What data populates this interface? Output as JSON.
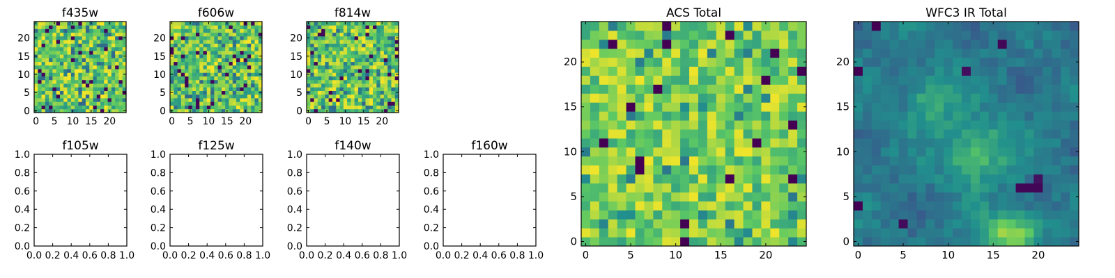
{
  "chart_data": [
    {
      "type": "heatmap",
      "title": "f435w",
      "grid_size": 25,
      "xticks": [
        "0",
        "5",
        "10",
        "15",
        "20"
      ],
      "yticks": [
        "0",
        "5",
        "10",
        "15",
        "20"
      ]
    },
    {
      "type": "heatmap",
      "title": "f606w",
      "grid_size": 25,
      "xticks": [
        "0",
        "5",
        "10",
        "15",
        "20"
      ],
      "yticks": [
        "0",
        "5",
        "10",
        "15",
        "20"
      ]
    },
    {
      "type": "heatmap",
      "title": "f814w",
      "grid_size": 25,
      "xticks": [
        "0",
        "5",
        "10",
        "15",
        "20"
      ],
      "yticks": [
        "0",
        "5",
        "10",
        "15",
        "20"
      ]
    },
    {
      "type": "empty",
      "title": "f105w",
      "xticks": [
        "0.0",
        "0.2",
        "0.4",
        "0.6",
        "0.8",
        "1.0"
      ],
      "yticks": [
        "0.0",
        "0.2",
        "0.4",
        "0.6",
        "0.8",
        "1.0"
      ]
    },
    {
      "type": "empty",
      "title": "f125w",
      "xticks": [
        "0.0",
        "0.2",
        "0.4",
        "0.6",
        "0.8",
        "1.0"
      ],
      "yticks": [
        "0.0",
        "0.2",
        "0.4",
        "0.6",
        "0.8",
        "1.0"
      ]
    },
    {
      "type": "empty",
      "title": "f140w",
      "xticks": [
        "0.0",
        "0.2",
        "0.4",
        "0.6",
        "0.8",
        "1.0"
      ],
      "yticks": [
        "0.0",
        "0.2",
        "0.4",
        "0.6",
        "0.8",
        "1.0"
      ]
    },
    {
      "type": "empty",
      "title": "f160w",
      "xticks": [
        "0.0",
        "0.2",
        "0.4",
        "0.6",
        "0.8",
        "1.0"
      ],
      "yticks": [
        "0.0",
        "0.2",
        "0.4",
        "0.6",
        "0.8",
        "1.0"
      ]
    },
    {
      "type": "heatmap",
      "title": "ACS Total",
      "grid_size": 25,
      "xticks": [
        "0",
        "5",
        "10",
        "15",
        "20"
      ],
      "yticks": [
        "0",
        "5",
        "10",
        "15",
        "20"
      ]
    },
    {
      "type": "heatmap",
      "title": "WFC3 IR Total",
      "grid_size": 25,
      "xticks": [
        "0",
        "5",
        "10",
        "15",
        "20"
      ],
      "yticks": [
        "0",
        "5",
        "10",
        "15",
        "20"
      ]
    }
  ],
  "colormap": [
    "#440154",
    "#3b528b",
    "#21908d",
    "#5dc963",
    "#fde725"
  ]
}
